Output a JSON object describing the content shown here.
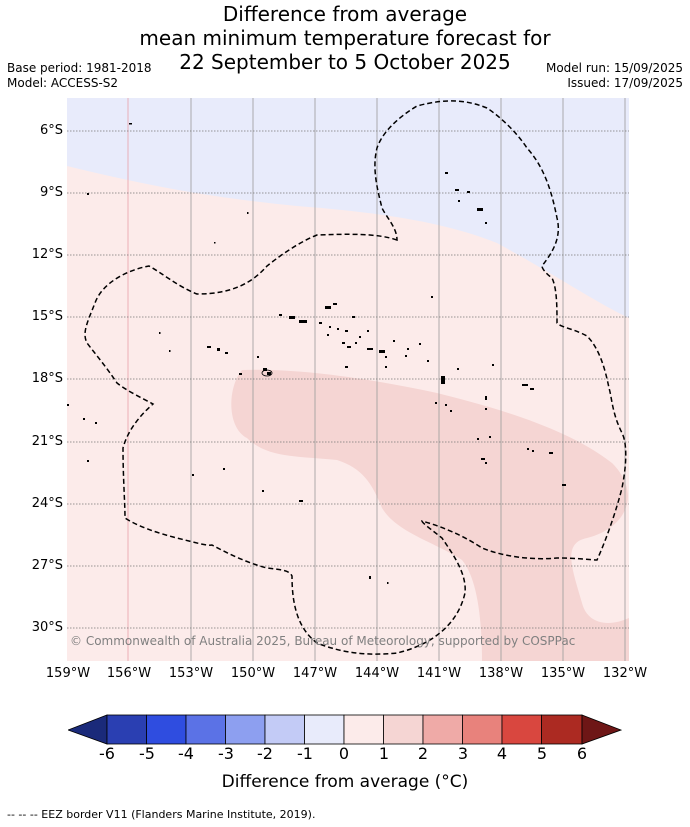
{
  "title": {
    "line1": "Difference from average",
    "line2": "mean minimum temperature forecast for",
    "line3": "22 September to 5 October 2025"
  },
  "meta": {
    "base_period": "Base period: 1981-2018",
    "model": "Model: ACCESS-S2",
    "model_run": "Model run: 15/09/2025",
    "issued": "Issued: 17/09/2025"
  },
  "map": {
    "lat_labels": [
      "6°S",
      "9°S",
      "12°S",
      "15°S",
      "18°S",
      "21°S",
      "24°S",
      "27°S",
      "30°S"
    ],
    "lon_labels": [
      "159°W",
      "156°W",
      "153°W",
      "150°W",
      "147°W",
      "144°W",
      "141°W",
      "138°W",
      "135°W",
      "132°W"
    ],
    "copyright": "© Commonwealth of Australia 2025, Bureau of Meteorology, supported by COSPPac",
    "region_colors": {
      "anomaly_minus_1_to_0": "#e8ebfb",
      "anomaly_0_to_1": "#fcebea",
      "anomaly_1_to_2": "#f5d5d3"
    },
    "eez_border_style": "dashed",
    "land_color": "#000000"
  },
  "colorbar": {
    "label": "Difference from average (°C)",
    "ticks": [
      "-6",
      "-5",
      "-4",
      "-3",
      "-2",
      "-1",
      "0",
      "1",
      "2",
      "3",
      "4",
      "5",
      "6"
    ],
    "colors": [
      "#1a2a7a",
      "#2a3fb2",
      "#2f4de0",
      "#5b72e6",
      "#8d9ff0",
      "#c3cbf6",
      "#e8ebfb",
      "#fcebea",
      "#f5d5d3",
      "#efaaa7",
      "#e8827c",
      "#d9473f",
      "#ac2a22",
      "#6e1616"
    ]
  },
  "footer": "-- -- -- EEZ border V11 (Flanders Marine Institute, 2019)."
}
